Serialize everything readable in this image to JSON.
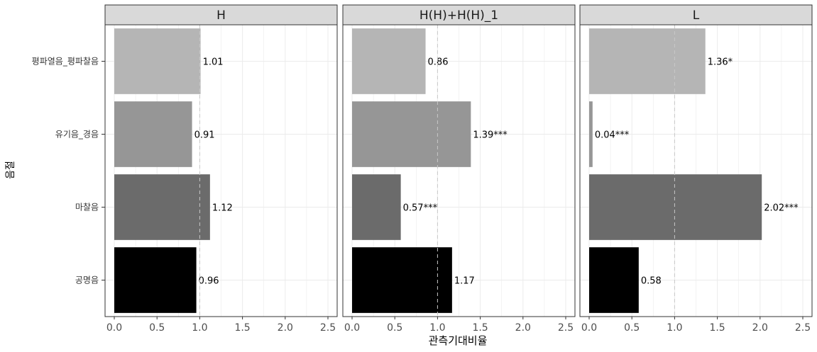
{
  "chart_data": {
    "type": "bar",
    "orientation": "horizontal",
    "categories": [
      "평파열음_평파찰음",
      "유기음_경음",
      "마찰음",
      "공명음"
    ],
    "category_colors": [
      "#b5b5b5",
      "#969696",
      "#6b6b6b",
      "#000000"
    ],
    "facets": [
      {
        "title": "H",
        "values": [
          1.01,
          0.91,
          1.12,
          0.96
        ],
        "labels": [
          "1.01",
          "0.91",
          "1.12",
          "0.96"
        ]
      },
      {
        "title": "H(H)+H(H)_1",
        "values": [
          0.86,
          1.39,
          0.57,
          1.17
        ],
        "labels": [
          "0.86",
          "1.39***",
          "0.57***",
          "1.17"
        ]
      },
      {
        "title": "L",
        "values": [
          1.36,
          0.04,
          2.02,
          0.58
        ],
        "labels": [
          "1.36*",
          "0.04***",
          "2.02***",
          "0.58"
        ]
      }
    ],
    "xlabel": "관측기대비율",
    "ylabel": "음절",
    "xlim": [
      0,
      2.5
    ],
    "xticks": [
      0.0,
      0.5,
      1.0,
      1.5,
      2.0,
      2.5
    ],
    "xtick_labels": [
      "0.0",
      "0.5",
      "1.0",
      "1.5",
      "2.0",
      "2.5"
    ],
    "reference_line": 1.0,
    "grid": true,
    "strip_background": "#d9d9d9"
  }
}
